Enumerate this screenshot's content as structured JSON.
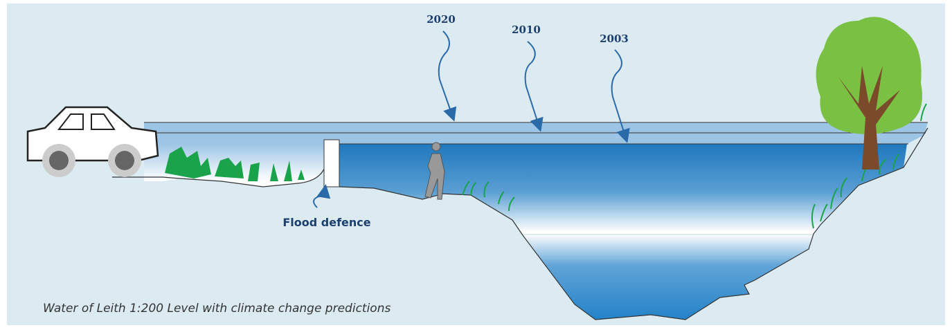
{
  "levels": [
    "2020",
    "2010",
    "2003"
  ],
  "flood_defence": "Flood defence",
  "caption": "Water of Leith 1:200 Level with climate change predictions"
}
